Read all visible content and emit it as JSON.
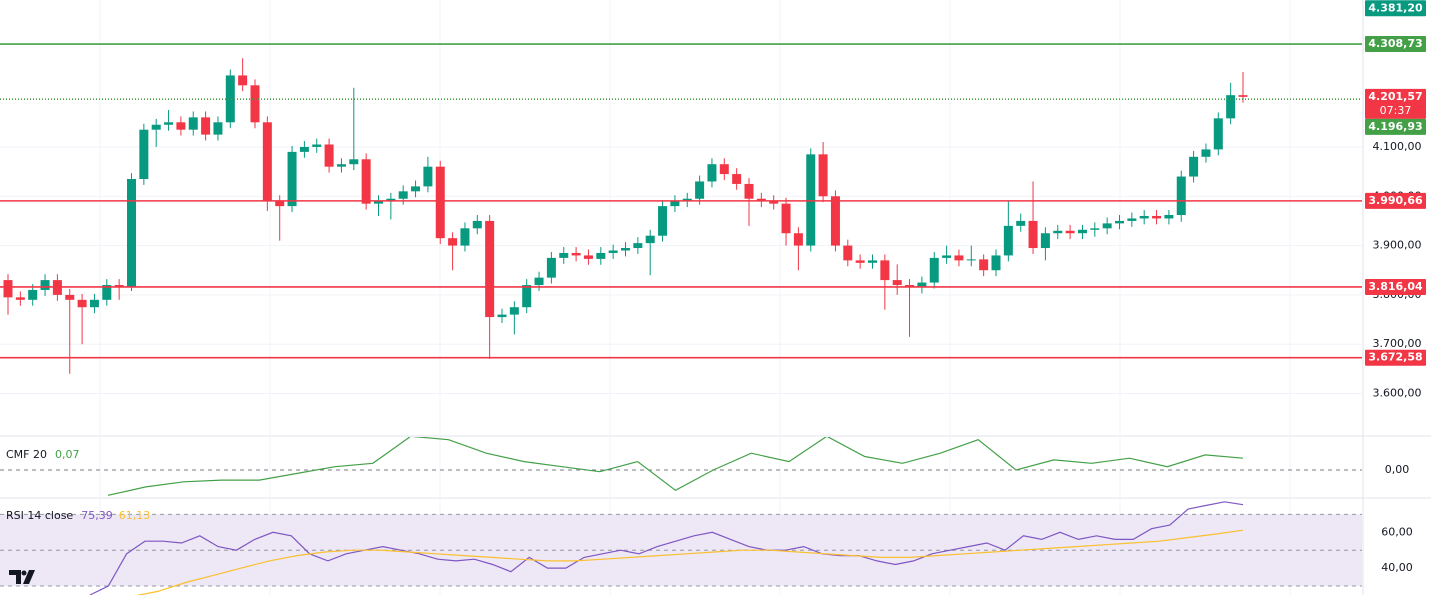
{
  "chart_data": [
    {
      "type": "candlestick",
      "up_color": "#089981",
      "down_color": "#f23645",
      "ylim": [
        3526,
        4398
      ],
      "yticks": [
        {
          "value": 4100,
          "label": "4.100,00"
        },
        {
          "value": 4000,
          "label": "4.000,00"
        },
        {
          "value": 3900,
          "label": "3.900,00"
        },
        {
          "value": 3800,
          "label": "3.800,00"
        },
        {
          "value": 3700,
          "label": "3.700,00"
        },
        {
          "value": 3600,
          "label": "3.600,00"
        }
      ],
      "grid": true,
      "last_price": {
        "value": 4201.57,
        "label": "4.201,57",
        "countdown": "07:37",
        "color": "#f23645"
      },
      "levels": [
        {
          "value": 4381.2,
          "label": "4.381,20",
          "color": "#089981",
          "line": false
        },
        {
          "value": 4308.73,
          "label": "4.308,73",
          "color": "#43a047",
          "line": true,
          "style": "solid"
        },
        {
          "value": 4196.93,
          "label": "4.196,93",
          "color": "#43a047",
          "line": true,
          "style": "dotted"
        },
        {
          "value": 3990.66,
          "label": "3.990,66",
          "color": "#f23645",
          "line": true,
          "style": "solid"
        },
        {
          "value": 3816.04,
          "label": "3.816,04",
          "color": "#f23645",
          "line": true,
          "style": "solid"
        },
        {
          "value": 3672.58,
          "label": "3.672,58",
          "color": "#f23645",
          "line": true,
          "style": "solid"
        }
      ],
      "candles": [
        [
          3830,
          3842,
          3760,
          3795
        ],
        [
          3795,
          3807,
          3778,
          3790
        ],
        [
          3790,
          3822,
          3778,
          3810
        ],
        [
          3810,
          3842,
          3798,
          3830
        ],
        [
          3830,
          3842,
          3788,
          3800
        ],
        [
          3800,
          3812,
          3640,
          3790
        ],
        [
          3790,
          3802,
          3700,
          3775
        ],
        [
          3775,
          3802,
          3763,
          3790
        ],
        [
          3790,
          3832,
          3778,
          3820
        ],
        [
          3820,
          3832,
          3790,
          3815
        ],
        [
          3815,
          4047,
          3808,
          4035
        ],
        [
          4035,
          4147,
          4023,
          4135
        ],
        [
          4135,
          4157,
          4100,
          4145
        ],
        [
          4145,
          4175,
          4133,
          4150
        ],
        [
          4150,
          4162,
          4123,
          4135
        ],
        [
          4135,
          4172,
          4123,
          4160
        ],
        [
          4160,
          4172,
          4113,
          4125
        ],
        [
          4125,
          4162,
          4113,
          4150
        ],
        [
          4150,
          4257,
          4138,
          4245
        ],
        [
          4245,
          4280,
          4213,
          4225
        ],
        [
          4225,
          4237,
          4138,
          4150
        ],
        [
          4150,
          4162,
          3970,
          3990
        ],
        [
          3990,
          4002,
          3910,
          3980
        ],
        [
          3980,
          4102,
          3968,
          4090
        ],
        [
          4090,
          4112,
          4078,
          4100
        ],
        [
          4100,
          4117,
          4088,
          4105
        ],
        [
          4105,
          4117,
          4048,
          4060
        ],
        [
          4060,
          4077,
          4048,
          4065
        ],
        [
          4065,
          4220,
          4053,
          4075
        ],
        [
          4075,
          4087,
          3973,
          3985
        ],
        [
          3985,
          4002,
          3960,
          3990
        ],
        [
          3990,
          4007,
          3953,
          3995
        ],
        [
          3995,
          4022,
          3983,
          4010
        ],
        [
          4010,
          4032,
          3998,
          4020
        ],
        [
          4020,
          4080,
          4008,
          4060
        ],
        [
          4060,
          4072,
          3903,
          3915
        ],
        [
          3915,
          3927,
          3850,
          3900
        ],
        [
          3900,
          3947,
          3888,
          3935
        ],
        [
          3935,
          3962,
          3923,
          3950
        ],
        [
          3950,
          3962,
          3670,
          3755
        ],
        [
          3755,
          3772,
          3743,
          3760
        ],
        [
          3760,
          3787,
          3720,
          3775
        ],
        [
          3775,
          3832,
          3763,
          3820
        ],
        [
          3820,
          3847,
          3808,
          3835
        ],
        [
          3835,
          3887,
          3823,
          3875
        ],
        [
          3875,
          3897,
          3863,
          3885
        ],
        [
          3885,
          3897,
          3868,
          3880
        ],
        [
          3880,
          3892,
          3861,
          3873
        ],
        [
          3873,
          3897,
          3861,
          3885
        ],
        [
          3885,
          3902,
          3873,
          3890
        ],
        [
          3890,
          3907,
          3878,
          3895
        ],
        [
          3895,
          3917,
          3883,
          3905
        ],
        [
          3905,
          3932,
          3840,
          3920
        ],
        [
          3920,
          3992,
          3908,
          3980
        ],
        [
          3980,
          4002,
          3968,
          3990
        ],
        [
          3990,
          4007,
          3978,
          3995
        ],
        [
          3995,
          4042,
          3983,
          4030
        ],
        [
          4030,
          4077,
          4018,
          4065
        ],
        [
          4065,
          4077,
          4033,
          4045
        ],
        [
          4045,
          4057,
          4013,
          4025
        ],
        [
          4025,
          4037,
          3940,
          3995
        ],
        [
          3995,
          4007,
          3978,
          3990
        ],
        [
          3990,
          4002,
          3973,
          3985
        ],
        [
          3985,
          3997,
          3900,
          3925
        ],
        [
          3925,
          3937,
          3850,
          3900
        ],
        [
          3900,
          4097,
          3888,
          4085
        ],
        [
          4085,
          4110,
          3988,
          4000
        ],
        [
          4000,
          4012,
          3888,
          3900
        ],
        [
          3900,
          3912,
          3858,
          3870
        ],
        [
          3870,
          3882,
          3853,
          3865
        ],
        [
          3865,
          3882,
          3853,
          3870
        ],
        [
          3870,
          3882,
          3770,
          3830
        ],
        [
          3830,
          3862,
          3800,
          3820
        ],
        [
          3820,
          3832,
          3715,
          3815
        ],
        [
          3815,
          3837,
          3803,
          3825
        ],
        [
          3825,
          3887,
          3813,
          3875
        ],
        [
          3875,
          3900,
          3863,
          3880
        ],
        [
          3880,
          3892,
          3858,
          3870
        ],
        [
          3870,
          3900,
          3858,
          3872
        ],
        [
          3872,
          3882,
          3838,
          3850
        ],
        [
          3850,
          3892,
          3838,
          3880
        ],
        [
          3880,
          3990,
          3868,
          3940
        ],
        [
          3940,
          3965,
          3928,
          3950
        ],
        [
          3950,
          4030,
          3883,
          3895
        ],
        [
          3895,
          3937,
          3870,
          3925
        ],
        [
          3925,
          3942,
          3913,
          3930
        ],
        [
          3930,
          3942,
          3913,
          3925
        ],
        [
          3925,
          3942,
          3913,
          3932
        ],
        [
          3932,
          3947,
          3918,
          3935
        ],
        [
          3935,
          3957,
          3923,
          3945
        ],
        [
          3945,
          3962,
          3933,
          3950
        ],
        [
          3950,
          3967,
          3938,
          3955
        ],
        [
          3955,
          3972,
          3943,
          3960
        ],
        [
          3960,
          3972,
          3943,
          3955
        ],
        [
          3955,
          3972,
          3943,
          3962
        ],
        [
          3962,
          4052,
          3948,
          4040
        ],
        [
          4040,
          4092,
          4028,
          4080
        ],
        [
          4080,
          4107,
          4068,
          4095
        ],
        [
          4095,
          4170,
          4083,
          4158
        ],
        [
          4158,
          4230,
          4146,
          4205
        ],
        [
          4205,
          4252,
          4190,
          4201.57
        ]
      ]
    },
    {
      "type": "line",
      "title": "CMF 20",
      "legend_value": "0,07",
      "color": "#43a047",
      "ylim": [
        -0.16,
        0.19
      ],
      "yticks": [
        {
          "value": 0,
          "label": "0,00"
        }
      ],
      "values": [
        -0.15,
        -0.1,
        -0.07,
        -0.06,
        -0.06,
        -0.02,
        0.02,
        0.04,
        0.2,
        0.18,
        0.1,
        0.05,
        0.02,
        -0.01,
        0.05,
        -0.12,
        0.0,
        0.1,
        0.05,
        0.2,
        0.08,
        0.04,
        0.1,
        0.18,
        0.0,
        0.06,
        0.04,
        0.07,
        0.02,
        0.09,
        0.07
      ]
    },
    {
      "type": "line",
      "title": "RSI 14 close",
      "ylim": [
        25,
        78
      ],
      "yticks": [
        {
          "value": 60,
          "label": "60,00"
        },
        {
          "value": 40,
          "label": "40,00"
        }
      ],
      "band": [
        30,
        70
      ],
      "band_color": "#ede7f6",
      "levels": [
        70,
        50,
        30
      ],
      "series": [
        {
          "color": "#7e57c2",
          "last_label": "75,39",
          "values": [
            25,
            30,
            48,
            55,
            55,
            54,
            58,
            52,
            50,
            56,
            60,
            58,
            48,
            44,
            48,
            50,
            52,
            50,
            48,
            45,
            44,
            45,
            42,
            38,
            46,
            40,
            40,
            46,
            48,
            50,
            48,
            52,
            55,
            58,
            60,
            56,
            52,
            50,
            50,
            52,
            48,
            47,
            47,
            44,
            42,
            44,
            48,
            50,
            52,
            54,
            50,
            58,
            56,
            60,
            56,
            58,
            56,
            56,
            62,
            64,
            73,
            75,
            77,
            75.39
          ]
        },
        {
          "color": "#fbc02d",
          "last_label": "61,13",
          "values": [
            24,
            27,
            32,
            36,
            40,
            44,
            47,
            49,
            50,
            50,
            49,
            48,
            47,
            46,
            45,
            44,
            44,
            45,
            46,
            47,
            48,
            49,
            50,
            50,
            49,
            48,
            47,
            46,
            46,
            47,
            48,
            49,
            50,
            51,
            52,
            53,
            54,
            55,
            57,
            59,
            61.13
          ]
        }
      ]
    }
  ]
}
